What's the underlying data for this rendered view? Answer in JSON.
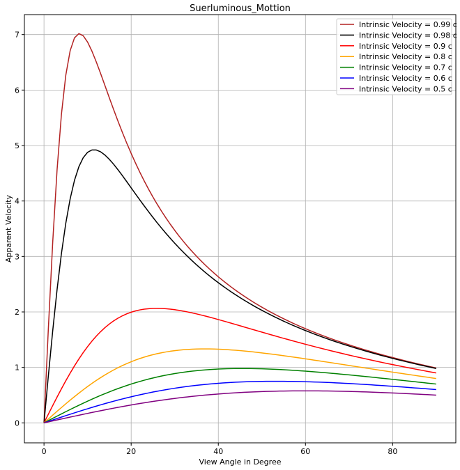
{
  "chart_data": {
    "type": "line",
    "title": "Suerluminous_Mottion",
    "xlabel": "View Angle in Degree",
    "ylabel": "Apparent Velocity",
    "xlim": [
      -4.5,
      94.5
    ],
    "ylim": [
      -0.36,
      7.36
    ],
    "xticks": [
      0,
      20,
      40,
      60,
      80
    ],
    "yticks": [
      0,
      1,
      2,
      3,
      4,
      5,
      6,
      7
    ],
    "grid": true,
    "legend_position": "top-right",
    "theta_range_degrees": [
      0,
      90
    ],
    "formula": "beta*sin(theta)/(1-beta*cos(theta))",
    "series": [
      {
        "name": "Intrinsic Velocity = 0.99 c",
        "beta": 0.99,
        "color": "#b22222"
      },
      {
        "name": "Intrinsic Velocity = 0.98 c",
        "beta": 0.98,
        "color": "#000000"
      },
      {
        "name": "Intrinsic Velocity = 0.9 c",
        "beta": 0.9,
        "color": "#ff0000"
      },
      {
        "name": "Intrinsic Velocity = 0.8 c",
        "beta": 0.8,
        "color": "#ffa500"
      },
      {
        "name": "Intrinsic Velocity = 0.7 c",
        "beta": 0.7,
        "color": "#008000"
      },
      {
        "name": "Intrinsic Velocity = 0.6 c",
        "beta": 0.6,
        "color": "#0000ff"
      },
      {
        "name": "Intrinsic Velocity = 0.5 c",
        "beta": 0.5,
        "color": "#800080"
      }
    ]
  }
}
